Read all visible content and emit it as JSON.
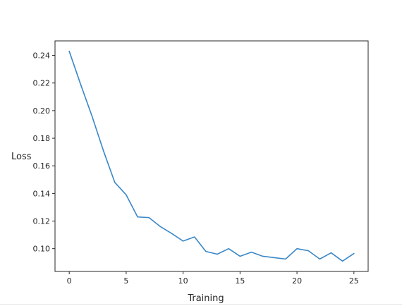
{
  "chart_data": {
    "type": "line",
    "title": "",
    "xlabel": "Training",
    "ylabel": "Loss",
    "xlim": [
      -1.25,
      26.25
    ],
    "ylim": [
      0.0835,
      0.2505
    ],
    "x_ticks": [
      0,
      5,
      10,
      15,
      20,
      25
    ],
    "y_ticks": [
      0.1,
      0.12,
      0.14,
      0.16,
      0.18,
      0.2,
      0.22,
      0.24
    ],
    "y_tick_labels": [
      "0.10",
      "0.12",
      "0.14",
      "0.16",
      "0.18",
      "0.20",
      "0.22",
      "0.24"
    ],
    "grid": false,
    "legend": "none",
    "line_color": "#3a87c8",
    "series": [
      {
        "x": [
          0,
          1,
          2,
          3,
          4,
          5,
          6,
          7,
          8,
          9,
          10,
          11,
          12,
          13,
          14,
          15,
          16,
          17,
          18,
          19,
          20,
          21,
          22,
          23,
          24,
          25
        ],
        "values": [
          0.243,
          0.219,
          0.196,
          0.171,
          0.148,
          0.139,
          0.123,
          0.1225,
          0.116,
          0.111,
          0.1055,
          0.1085,
          0.098,
          0.096,
          0.1,
          0.0945,
          0.0975,
          0.0945,
          0.0935,
          0.0925,
          0.1,
          0.0985,
          0.0925,
          0.097,
          0.091,
          0.0965
        ]
      }
    ]
  }
}
